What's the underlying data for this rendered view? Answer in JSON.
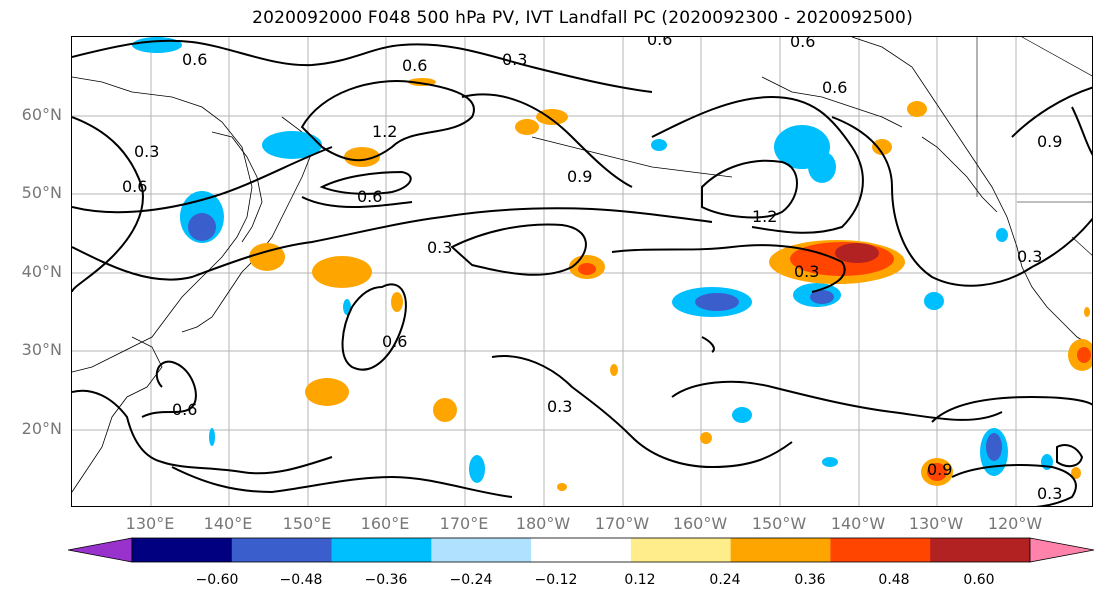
{
  "title": "2020092000 F048 500 hPa PV, IVT Landfall PC (2020092300 - 2020092500)",
  "lat_labels": [
    "60°N",
    "50°N",
    "40°N",
    "30°N",
    "20°N"
  ],
  "lon_labels": [
    "130°E",
    "140°E",
    "150°E",
    "160°E",
    "170°E",
    "180°W",
    "170°W",
    "160°W",
    "150°W",
    "140°W",
    "130°W",
    "120°W"
  ],
  "contour_labels": [
    "0.6",
    "0.6",
    "0.6",
    "0.6",
    "0.3",
    "1.2",
    "0.6",
    "0.9",
    "0.9",
    "0.6",
    "1.2",
    "0.6",
    "0.3",
    "0.3",
    "0.6",
    "0.6",
    "0.3",
    "0.3",
    "0.9",
    "0.3",
    "0.3"
  ],
  "colorbar": {
    "colors": [
      "#9932cc",
      "#000080",
      "#3a5fcd",
      "#00bfff",
      "#b0e2ff",
      "#ffffff",
      "#ffec8b",
      "#ffa500",
      "#ff4500",
      "#b22222",
      "#ff82ab"
    ],
    "ticks": [
      "−0.60",
      "−0.48",
      "−0.36",
      "−0.24",
      "−0.12",
      "0.12",
      "0.24",
      "0.36",
      "0.48",
      "0.60"
    ]
  },
  "style": {
    "negative_color": "#00bfff",
    "positive_color": "#ffa500",
    "strong_positive": "#ff4500",
    "strong_negative": "#3a5fcd"
  }
}
